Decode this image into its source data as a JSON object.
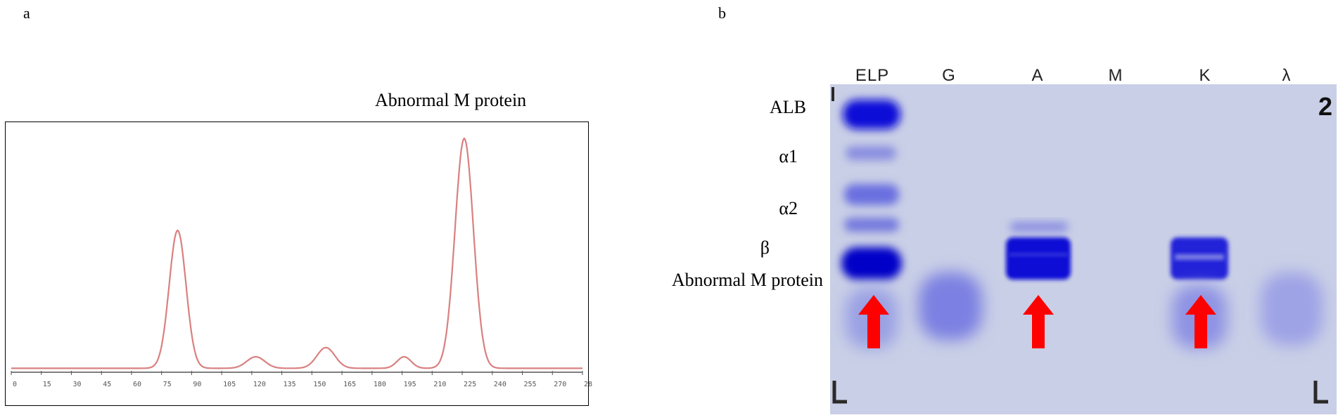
{
  "panels": {
    "a": {
      "letter": "a",
      "title": "Abnormal M protein"
    },
    "b": {
      "letter": "b"
    }
  },
  "densitometry": {
    "x_ticks": [
      "0",
      "15",
      "30",
      "45",
      "60",
      "75",
      "90",
      "105",
      "120",
      "135",
      "150",
      "165",
      "180",
      "195",
      "210",
      "225",
      "240",
      "255",
      "270",
      "28"
    ],
    "trace_color": "#d98080",
    "axis_color": "#555555",
    "peaks": [
      {
        "x": 83,
        "height": 0.6
      },
      {
        "x": 122,
        "height": 0.05
      },
      {
        "x": 157,
        "height": 0.09
      },
      {
        "x": 196,
        "height": 0.05
      },
      {
        "x": 226,
        "height": 1.0
      }
    ]
  },
  "gel": {
    "lanes": [
      "ELP",
      "G",
      "A",
      "M",
      "K",
      "λ"
    ],
    "bands": [
      "ALB",
      "α1",
      "α2",
      "β",
      "Abnormal M protein"
    ],
    "lane_number": "2",
    "colors": {
      "background": "#c9cfe6",
      "band": "#1a1ad6",
      "arrow": "#ff0000"
    },
    "arrow_lanes": [
      "ELP",
      "A",
      "K"
    ]
  }
}
